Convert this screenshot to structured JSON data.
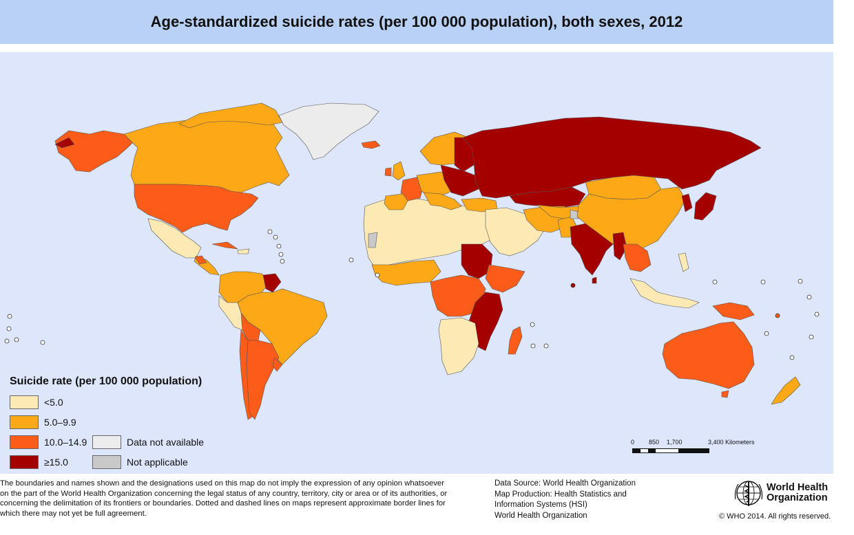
{
  "title": "Age-standardized suicide rates (per 100 000 population), both sexes, 2012",
  "colors": {
    "ocean": "#dde6fb",
    "title_bar": "#b9d1f4",
    "lt5": "#fde9b3",
    "r5_9": "#fda816",
    "r10_14": "#fb5c19",
    "ge15": "#a50000",
    "not_available": "#ececec",
    "not_applicable": "#c9c9c9"
  },
  "legend": {
    "title": "Suicide rate (per 100 000 population)",
    "items": [
      {
        "label": "<5.0",
        "color": "#fde9b3"
      },
      {
        "label": "5.0–9.9",
        "color": "#fda816"
      },
      {
        "label": "10.0–14.9",
        "color": "#fb5c19"
      },
      {
        "label": "≥15.0",
        "color": "#a50000"
      }
    ],
    "extra": [
      {
        "label": "Data not available",
        "color": "#ececec"
      },
      {
        "label": "Not applicable",
        "color": "#c9c9c9"
      }
    ]
  },
  "scale_bar": {
    "labels": [
      "0",
      "850",
      "1,700",
      "3,400 Kilometers"
    ]
  },
  "disclaimer": "The boundaries and names shown and the designations used on this map do not imply the expression of any opinion whatsoever on the part of the World Health Organization concerning the legal status of any country, territory, city or area or of its authorities, or concerning the delimitation of its frontiers or boundaries. Dotted and dashed lines on maps represent approximate border lines for which there may not yet be full agreement.",
  "source": {
    "line1": "Data Source: World Health Organization",
    "line2": "Map Production: Health Statistics and",
    "line3": "Information Systems (HSI)",
    "line4": "World Health Organization"
  },
  "logo": {
    "line1": "World Health",
    "line2": "Organization"
  },
  "copyright": "© WHO 2014. All rights reserved."
}
